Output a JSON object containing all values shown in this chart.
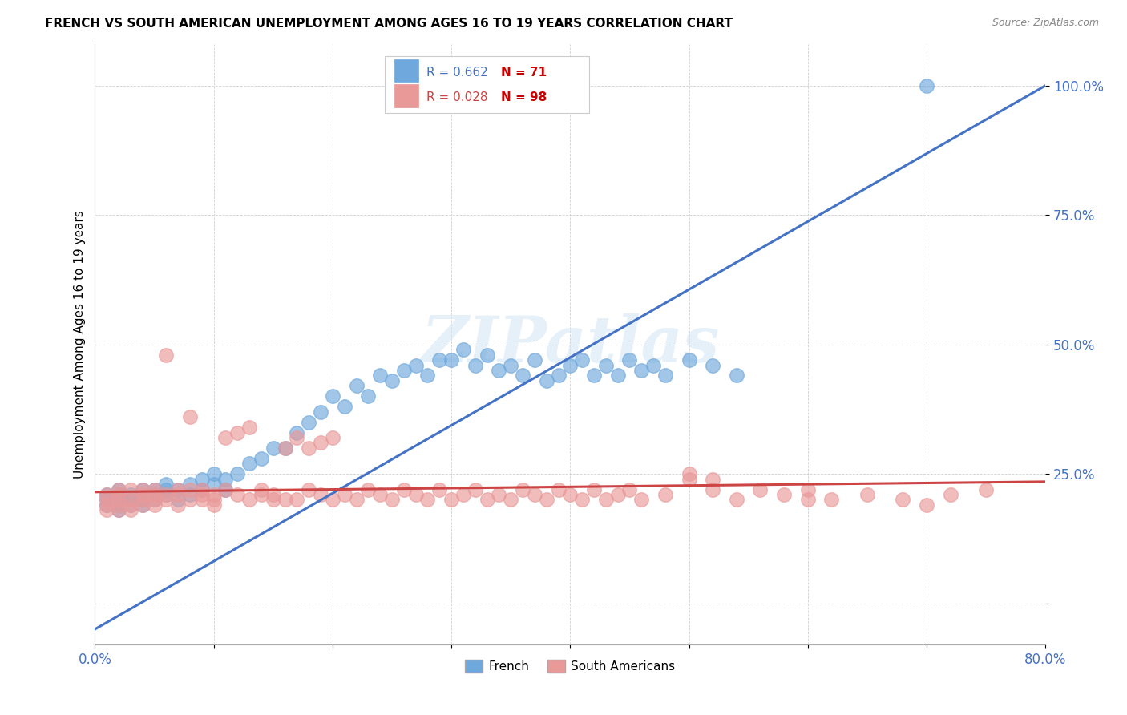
{
  "title": "FRENCH VS SOUTH AMERICAN UNEMPLOYMENT AMONG AGES 16 TO 19 YEARS CORRELATION CHART",
  "source": "Source: ZipAtlas.com",
  "ylabel": "Unemployment Among Ages 16 to 19 years",
  "xmin": 0.0,
  "xmax": 0.8,
  "ymin": -0.08,
  "ymax": 1.08,
  "french_color": "#6fa8dc",
  "south_american_color": "#ea9999",
  "french_R": 0.662,
  "french_N": 71,
  "south_american_R": 0.028,
  "south_american_N": 98,
  "french_line_color": "#4472c4",
  "south_american_line_color": "#cc4444",
  "background_color": "#ffffff",
  "grid_color": "#cccccc",
  "french_x": [
    0.01,
    0.01,
    0.01,
    0.02,
    0.02,
    0.02,
    0.02,
    0.02,
    0.03,
    0.03,
    0.03,
    0.04,
    0.04,
    0.04,
    0.05,
    0.05,
    0.05,
    0.06,
    0.06,
    0.06,
    0.07,
    0.07,
    0.08,
    0.08,
    0.09,
    0.09,
    0.1,
    0.1,
    0.11,
    0.11,
    0.12,
    0.13,
    0.14,
    0.15,
    0.16,
    0.17,
    0.18,
    0.19,
    0.2,
    0.21,
    0.22,
    0.23,
    0.24,
    0.25,
    0.26,
    0.27,
    0.28,
    0.29,
    0.3,
    0.31,
    0.32,
    0.33,
    0.34,
    0.35,
    0.36,
    0.37,
    0.38,
    0.39,
    0.4,
    0.41,
    0.42,
    0.43,
    0.44,
    0.45,
    0.46,
    0.47,
    0.48,
    0.5,
    0.52,
    0.54,
    0.7
  ],
  "french_y": [
    0.2,
    0.21,
    0.19,
    0.2,
    0.22,
    0.19,
    0.21,
    0.18,
    0.2,
    0.19,
    0.21,
    0.22,
    0.2,
    0.19,
    0.21,
    0.22,
    0.2,
    0.23,
    0.21,
    0.22,
    0.22,
    0.2,
    0.23,
    0.21,
    0.24,
    0.22,
    0.25,
    0.23,
    0.24,
    0.22,
    0.25,
    0.27,
    0.28,
    0.3,
    0.3,
    0.33,
    0.35,
    0.37,
    0.4,
    0.38,
    0.42,
    0.4,
    0.44,
    0.43,
    0.45,
    0.46,
    0.44,
    0.47,
    0.47,
    0.49,
    0.46,
    0.48,
    0.45,
    0.46,
    0.44,
    0.47,
    0.43,
    0.44,
    0.46,
    0.47,
    0.44,
    0.46,
    0.44,
    0.47,
    0.45,
    0.46,
    0.44,
    0.47,
    0.46,
    0.44,
    1.0
  ],
  "sa_x": [
    0.01,
    0.01,
    0.01,
    0.01,
    0.02,
    0.02,
    0.02,
    0.02,
    0.02,
    0.03,
    0.03,
    0.03,
    0.03,
    0.04,
    0.04,
    0.04,
    0.04,
    0.05,
    0.05,
    0.05,
    0.05,
    0.06,
    0.06,
    0.06,
    0.07,
    0.07,
    0.07,
    0.08,
    0.08,
    0.08,
    0.09,
    0.09,
    0.09,
    0.1,
    0.1,
    0.1,
    0.11,
    0.11,
    0.12,
    0.12,
    0.13,
    0.13,
    0.14,
    0.14,
    0.15,
    0.15,
    0.16,
    0.16,
    0.17,
    0.17,
    0.18,
    0.18,
    0.19,
    0.19,
    0.2,
    0.2,
    0.21,
    0.22,
    0.23,
    0.24,
    0.25,
    0.26,
    0.27,
    0.28,
    0.29,
    0.3,
    0.31,
    0.32,
    0.33,
    0.34,
    0.35,
    0.36,
    0.37,
    0.38,
    0.39,
    0.4,
    0.41,
    0.42,
    0.43,
    0.44,
    0.45,
    0.46,
    0.48,
    0.5,
    0.52,
    0.54,
    0.56,
    0.58,
    0.6,
    0.62,
    0.65,
    0.68,
    0.7,
    0.72,
    0.75,
    0.5,
    0.52,
    0.6
  ],
  "sa_y": [
    0.2,
    0.19,
    0.21,
    0.18,
    0.2,
    0.22,
    0.19,
    0.18,
    0.21,
    0.2,
    0.19,
    0.22,
    0.18,
    0.21,
    0.2,
    0.19,
    0.22,
    0.21,
    0.2,
    0.22,
    0.19,
    0.21,
    0.2,
    0.48,
    0.22,
    0.21,
    0.19,
    0.2,
    0.22,
    0.36,
    0.21,
    0.2,
    0.22,
    0.21,
    0.2,
    0.19,
    0.22,
    0.32,
    0.21,
    0.33,
    0.2,
    0.34,
    0.21,
    0.22,
    0.2,
    0.21,
    0.3,
    0.2,
    0.32,
    0.2,
    0.22,
    0.3,
    0.21,
    0.31,
    0.2,
    0.32,
    0.21,
    0.2,
    0.22,
    0.21,
    0.2,
    0.22,
    0.21,
    0.2,
    0.22,
    0.2,
    0.21,
    0.22,
    0.2,
    0.21,
    0.2,
    0.22,
    0.21,
    0.2,
    0.22,
    0.21,
    0.2,
    0.22,
    0.2,
    0.21,
    0.22,
    0.2,
    0.21,
    0.24,
    0.22,
    0.2,
    0.22,
    0.21,
    0.22,
    0.2,
    0.21,
    0.2,
    0.19,
    0.21,
    0.22,
    0.25,
    0.24,
    0.2
  ],
  "french_line_x0": 0.0,
  "french_line_x1": 0.8,
  "french_line_y0": -0.05,
  "french_line_y1": 1.0,
  "sa_line_x0": 0.0,
  "sa_line_x1": 0.8,
  "sa_line_y0": 0.215,
  "sa_line_y1": 0.235
}
